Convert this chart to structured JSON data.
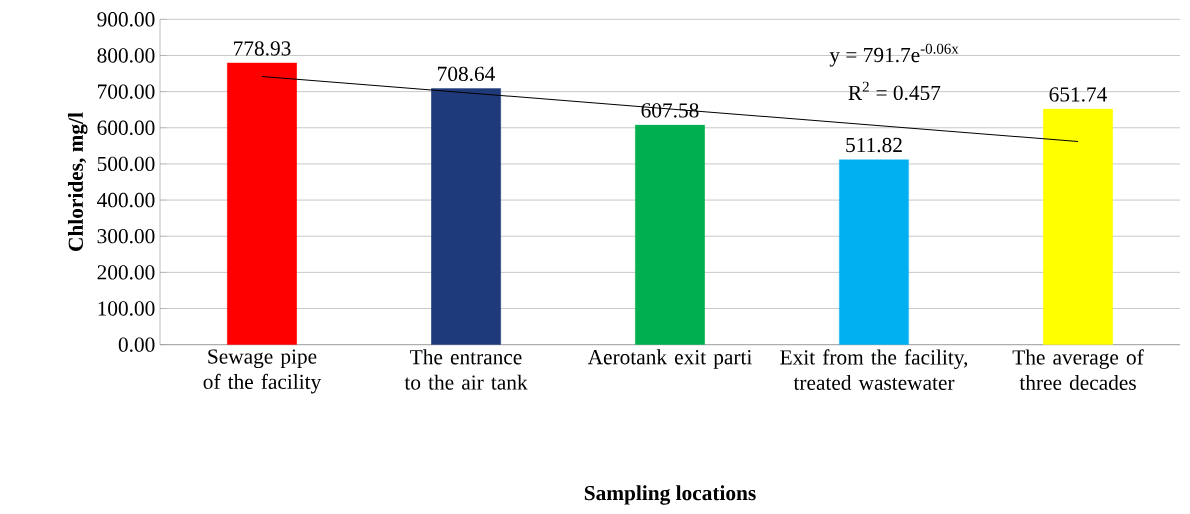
{
  "chart_data": {
    "type": "bar",
    "xlabel": "Sampling locations",
    "ylabel": "Chlorides, mg/l",
    "categories": [
      "Sewage pipe of the facility",
      "The entrance to the air tank",
      "Aerotank exit parti",
      "Exit from the facility, treated wastewater",
      "The average of three decades"
    ],
    "values": [
      778.93,
      708.64,
      607.58,
      511.82,
      651.74
    ],
    "colors": [
      "#ff0000",
      "#1f3a7a",
      "#00b050",
      "#00b0f0",
      "#ffff00"
    ],
    "value_labels": [
      "778.93",
      "708.64",
      "607.58",
      "511.82",
      "651.74"
    ],
    "series": [
      {
        "type": "line",
        "color": "#000000",
        "values": [
          742,
          697,
          652,
          607,
          562
        ]
      }
    ],
    "annotations": [
      "y = 791.7e$^{-0.06x}$",
      "R$^{2}$ = 0.457"
    ],
    "ylim": [
      0,
      900
    ],
    "yticks": [
      {
        "value": 0,
        "label": "0.00"
      },
      {
        "value": 100,
        "label": "100.00"
      },
      {
        "value": 200,
        "label": "200.00"
      },
      {
        "value": 300,
        "label": "300.00"
      },
      {
        "value": 400,
        "label": "400.00"
      },
      {
        "value": 500,
        "label": "500.00"
      },
      {
        "value": 600,
        "label": "600.00"
      },
      {
        "value": 700,
        "label": "700.00"
      },
      {
        "value": 800,
        "label": "800.00"
      },
      {
        "value": 900,
        "label": "900.00"
      }
    ],
    "grid": "y"
  }
}
